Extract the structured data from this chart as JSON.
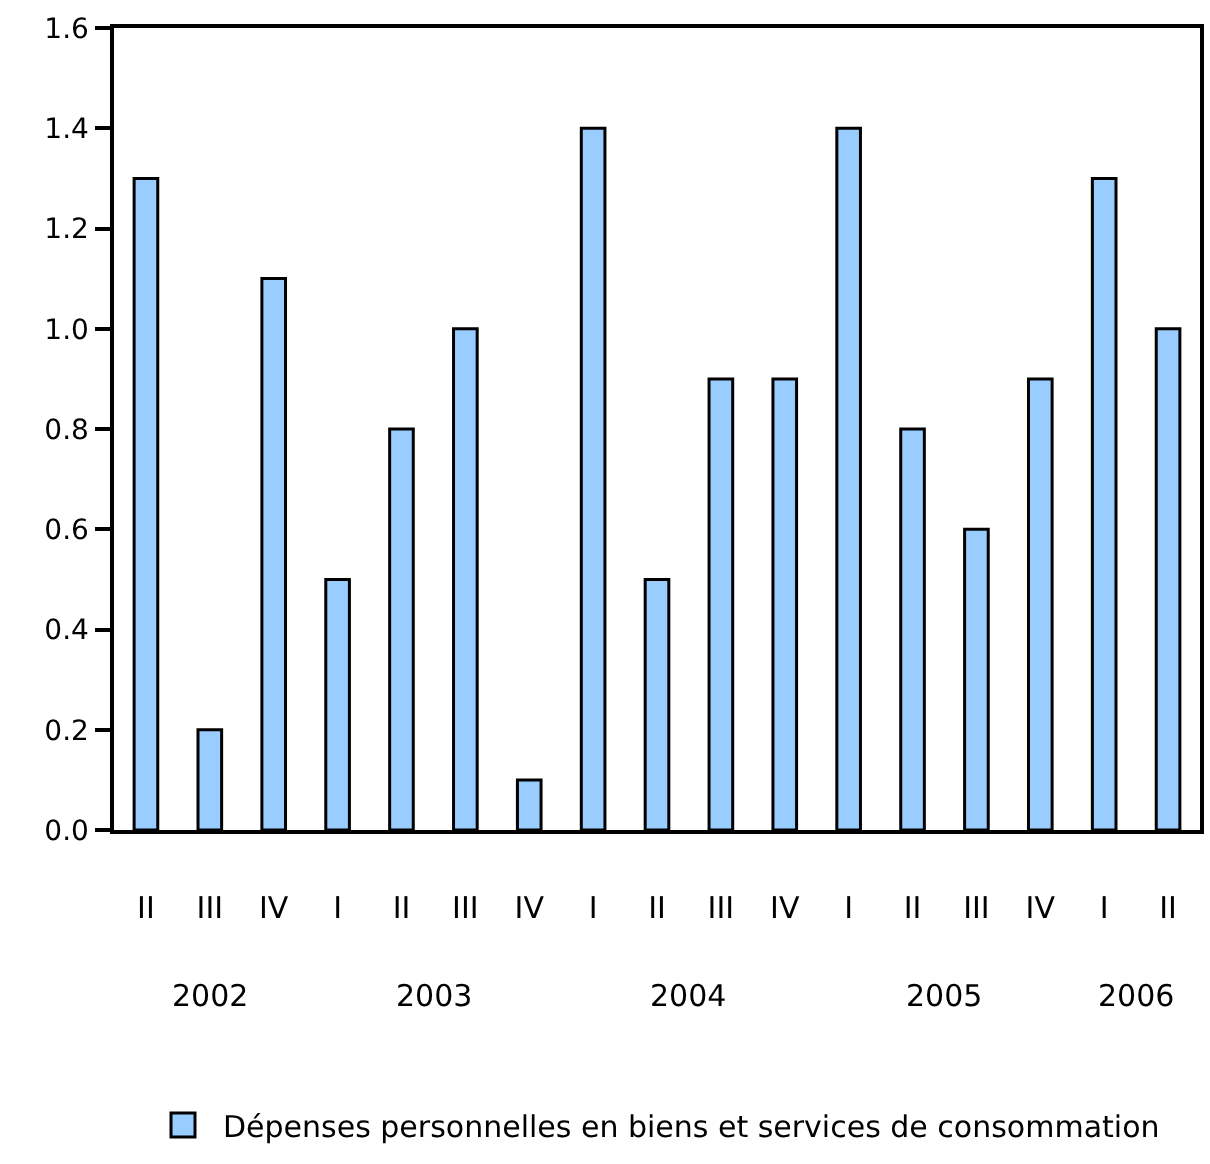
{
  "chart_data": {
    "type": "bar",
    "categories": [
      "II",
      "III",
      "IV",
      "I",
      "II",
      "III",
      "IV",
      "I",
      "II",
      "III",
      "IV",
      "I",
      "II",
      "III",
      "IV",
      "I",
      "II"
    ],
    "series": [
      {
        "name": "Dépenses personnelles en biens et services de consommation",
        "color": "#99ccff",
        "values": [
          1.3,
          0.2,
          1.1,
          0.5,
          0.8,
          1.0,
          0.1,
          1.4,
          0.5,
          0.9,
          0.9,
          1.4,
          0.8,
          0.6,
          0.9,
          1.3,
          1.0
        ]
      }
    ],
    "ylim": [
      0,
      1.6
    ],
    "yticks": [
      {
        "value": 0,
        "label": "0.0"
      },
      0.2,
      0.4,
      0.6,
      0.8,
      {
        "value": 1,
        "label": "1.0"
      },
      1.2,
      1.4,
      1.6
    ],
    "annotations": [
      "2002",
      "2003",
      "2004",
      "2005",
      "2006"
    ],
    "legend": "bottom"
  }
}
